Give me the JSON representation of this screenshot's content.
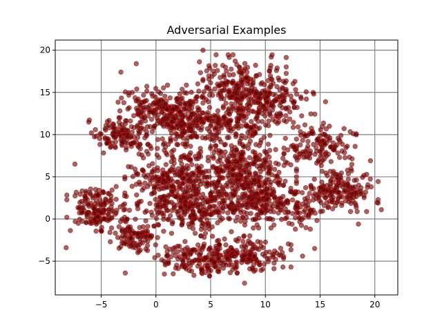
{
  "chart_data": {
    "type": "scatter",
    "title": "Adversarial Examples",
    "xlabel": "",
    "ylabel": "",
    "xlim": [
      -9.2,
      22.1
    ],
    "ylim": [
      -9.0,
      21.2
    ],
    "xticks": [
      -5,
      0,
      5,
      10,
      15,
      20
    ],
    "yticks": [
      -5,
      0,
      5,
      10,
      15,
      20
    ],
    "grid": true,
    "grid_color": "#808080",
    "marker_fill": "#4a0808",
    "marker_edge": "#cc1010",
    "marker_opacity": 0.6,
    "cluster_seed": 20240607,
    "clusters": [
      {
        "x": -5.5,
        "y": 1.2,
        "sx": 1.2,
        "sy": 1.2,
        "n": 160
      },
      {
        "x": -2.0,
        "y": -2.0,
        "sx": 1.0,
        "sy": 0.9,
        "n": 100
      },
      {
        "x": -3.5,
        "y": 9.8,
        "sx": 1.2,
        "sy": 1.0,
        "n": 110
      },
      {
        "x": 0.5,
        "y": 13.0,
        "sx": 2.0,
        "sy": 1.3,
        "n": 220
      },
      {
        "x": 3.0,
        "y": 11.0,
        "sx": 1.6,
        "sy": 1.2,
        "n": 150
      },
      {
        "x": 7.5,
        "y": 15.5,
        "sx": 2.0,
        "sy": 1.8,
        "n": 240
      },
      {
        "x": 11.0,
        "y": 13.5,
        "sx": 1.6,
        "sy": 1.2,
        "n": 120
      },
      {
        "x": 7.0,
        "y": 11.5,
        "sx": 1.5,
        "sy": 1.0,
        "n": 110
      },
      {
        "x": 2.0,
        "y": 4.0,
        "sx": 2.2,
        "sy": 2.2,
        "n": 380
      },
      {
        "x": 8.0,
        "y": 5.5,
        "sx": 2.2,
        "sy": 2.4,
        "n": 380
      },
      {
        "x": 9.5,
        "y": 1.8,
        "sx": 2.0,
        "sy": 1.3,
        "n": 180
      },
      {
        "x": 4.0,
        "y": 0.5,
        "sx": 1.5,
        "sy": 1.0,
        "n": 110
      },
      {
        "x": 15.0,
        "y": 8.5,
        "sx": 1.5,
        "sy": 1.3,
        "n": 130
      },
      {
        "x": 17.0,
        "y": 3.3,
        "sx": 1.5,
        "sy": 1.1,
        "n": 160
      },
      {
        "x": 13.5,
        "y": 1.0,
        "sx": 1.2,
        "sy": 1.0,
        "n": 60
      },
      {
        "x": 7.5,
        "y": -4.2,
        "sx": 2.2,
        "sy": 1.0,
        "n": 220
      },
      {
        "x": 3.0,
        "y": -5.0,
        "sx": 1.5,
        "sy": 0.8,
        "n": 90
      }
    ],
    "outliers": [
      {
        "x": -7.4,
        "y": 6.5
      },
      {
        "x": -8.2,
        "y": -3.4
      },
      {
        "x": -2.8,
        "y": -6.4
      },
      {
        "x": -3.2,
        "y": 17.4
      },
      {
        "x": -1.8,
        "y": 18.4
      },
      {
        "x": 4.3,
        "y": 20.0
      },
      {
        "x": 20.6,
        "y": 1.1
      },
      {
        "x": 19.6,
        "y": 6.9
      },
      {
        "x": 18.5,
        "y": -0.6
      },
      {
        "x": 14.5,
        "y": -3.5
      },
      {
        "x": 13.4,
        "y": -4.4
      },
      {
        "x": 12.7,
        "y": 16.3
      },
      {
        "x": 15.5,
        "y": 13.9
      },
      {
        "x": 18.2,
        "y": 8.6
      },
      {
        "x": 10.5,
        "y": 18.2
      },
      {
        "x": 6.1,
        "y": 18.2
      },
      {
        "x": 8.1,
        "y": -7.6
      },
      {
        "x": 0.9,
        "y": -3.3
      }
    ]
  }
}
